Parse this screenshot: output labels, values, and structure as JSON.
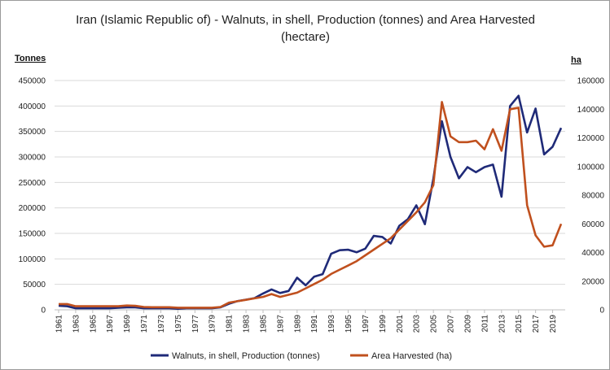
{
  "chart_data": {
    "type": "line",
    "title_line1": "Iran (Islamic Republic of) -  Walnuts, in shell, Production (tonnes) and Area Harvested",
    "title_line2": "(hectare)",
    "left_axis_label": "Tonnes",
    "right_axis_label": "ha",
    "y_left_range": [
      0,
      450000
    ],
    "y_left_ticks": [
      "0",
      "50000",
      "100000",
      "150000",
      "200000",
      "250000",
      "300000",
      "350000",
      "400000",
      "450000"
    ],
    "y_right_range": [
      0,
      160000
    ],
    "y_right_ticks": [
      "0",
      "20000",
      "40000",
      "60000",
      "80000",
      "100000",
      "120000",
      "140000",
      "160000"
    ],
    "x": [
      1961,
      1962,
      1963,
      1964,
      1965,
      1966,
      1967,
      1968,
      1969,
      1970,
      1971,
      1972,
      1973,
      1974,
      1975,
      1976,
      1977,
      1978,
      1979,
      1980,
      1981,
      1982,
      1983,
      1984,
      1985,
      1986,
      1987,
      1988,
      1989,
      1990,
      1991,
      1992,
      1993,
      1994,
      1995,
      1996,
      1997,
      1998,
      1999,
      2000,
      2001,
      2002,
      2003,
      2004,
      2005,
      2006,
      2007,
      2008,
      2009,
      2010,
      2011,
      2012,
      2013,
      2014,
      2015,
      2016,
      2017,
      2018,
      2019,
      2020
    ],
    "x_tick_labels": [
      "1961",
      "1963",
      "1965",
      "1967",
      "1969",
      "1971",
      "1973",
      "1975",
      "1977",
      "1979",
      "1981",
      "1983",
      "1985",
      "1987",
      "1989",
      "1991",
      "1993",
      "1995",
      "1997",
      "1999",
      "2001",
      "2003",
      "2005",
      "2007",
      "2009",
      "2011",
      "2013",
      "2015",
      "2017",
      "2019"
    ],
    "grid": "horizontal",
    "legend_position": "bottom",
    "series": [
      {
        "name": "Walnuts, in shell, Production (tonnes)",
        "axis": "left",
        "color": "#1f2a78",
        "values": [
          8000,
          7000,
          3000,
          3000,
          3000,
          3000,
          3000,
          4000,
          5000,
          5000,
          3000,
          3000,
          3000,
          3000,
          2000,
          3000,
          3000,
          3000,
          3000,
          5000,
          12000,
          17000,
          20000,
          23000,
          32000,
          40000,
          33000,
          37000,
          63000,
          48000,
          65000,
          70000,
          110000,
          117000,
          118000,
          113000,
          120000,
          145000,
          143000,
          130000,
          165000,
          178000,
          205000,
          168000,
          257000,
          370000,
          300000,
          258000,
          280000,
          270000,
          280000,
          285000,
          222000,
          400000,
          420000,
          348000,
          395000,
          305000,
          320000,
          357000
        ]
      },
      {
        "name": "Area Harvested (ha)",
        "axis": "right",
        "color": "#c0501e",
        "values": [
          4000,
          4000,
          2500,
          2500,
          2500,
          2500,
          2500,
          2500,
          3000,
          2800,
          2000,
          1800,
          1800,
          1800,
          1500,
          1500,
          1500,
          1500,
          1500,
          2000,
          5000,
          6000,
          7000,
          8000,
          9000,
          11000,
          9000,
          10500,
          12000,
          15000,
          18000,
          21000,
          25000,
          28000,
          31000,
          34000,
          38000,
          42000,
          46000,
          50000,
          56000,
          62000,
          68000,
          75000,
          87000,
          145000,
          121000,
          117000,
          117000,
          118000,
          112000,
          126000,
          111000,
          140000,
          141000,
          73000,
          52000,
          44000,
          45000,
          60000
        ]
      }
    ]
  }
}
